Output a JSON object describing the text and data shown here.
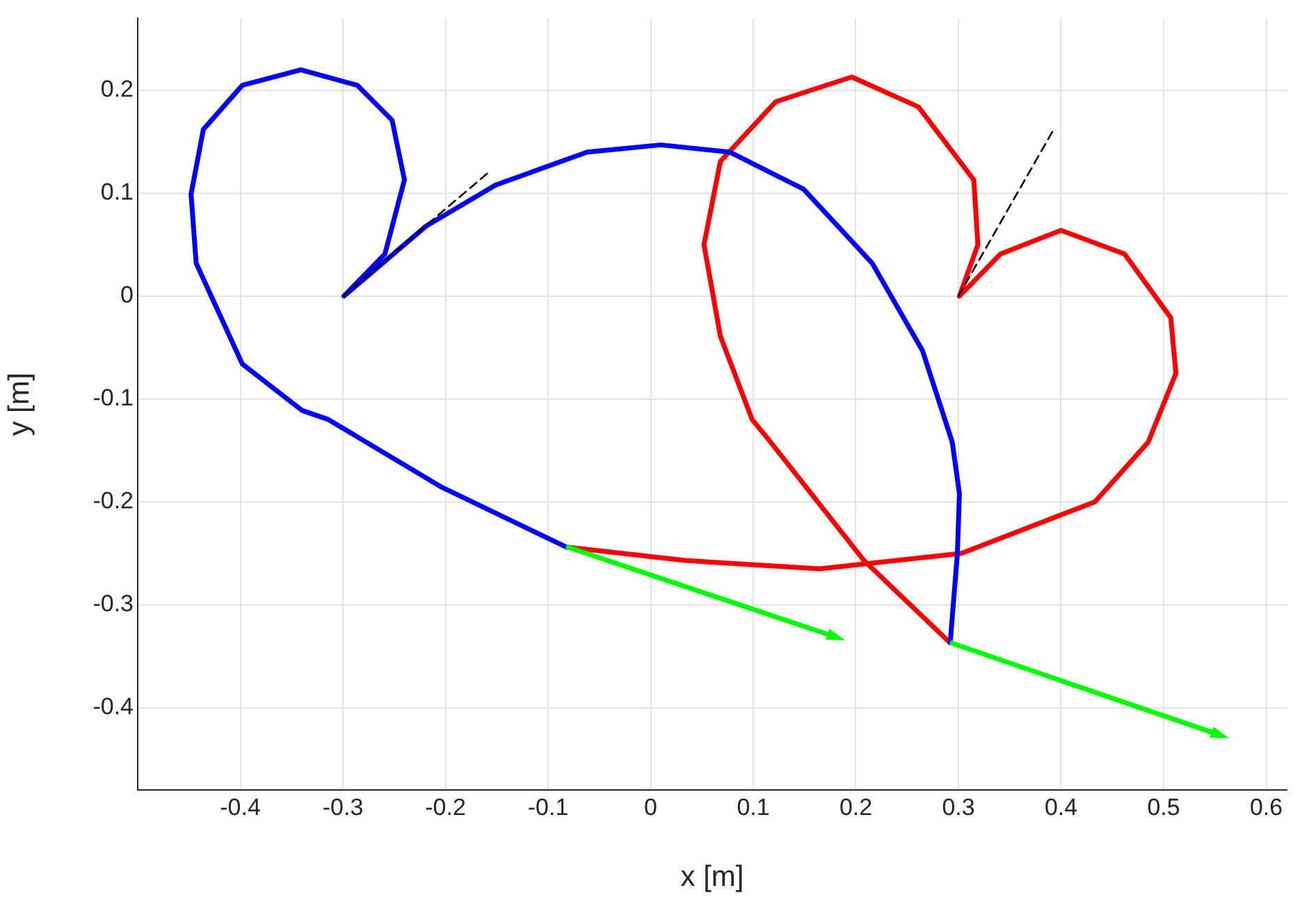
{
  "chart_data": {
    "type": "line",
    "xlabel": "x [m]",
    "ylabel": "y [m]",
    "xlim": [
      -0.5,
      0.62
    ],
    "ylim": [
      -0.48,
      0.27
    ],
    "xticks": [
      -0.4,
      -0.3,
      -0.2,
      -0.1,
      0,
      0.1,
      0.2,
      0.3,
      0.4,
      0.5,
      0.6
    ],
    "yticks": [
      -0.4,
      -0.3,
      -0.2,
      -0.1,
      0,
      0.1,
      0.2
    ],
    "grid": true,
    "legend": false,
    "marker": "none",
    "series": [
      {
        "color": "#0000ff",
        "line_style": "solid",
        "x": [
          -0.082,
          -0.205,
          -0.314,
          -0.34,
          -0.398,
          -0.443,
          -0.448,
          -0.436,
          -0.398,
          -0.341,
          -0.286,
          -0.252,
          -0.24,
          -0.259,
          -0.299,
          -0.219,
          -0.151,
          -0.062,
          0.01,
          0.077,
          0.149,
          0.216,
          0.265,
          0.294,
          0.301,
          0.299,
          0.292
        ],
        "values": [
          -0.244,
          -0.185,
          -0.12,
          -0.111,
          -0.066,
          0.032,
          0.099,
          0.162,
          0.205,
          0.22,
          0.205,
          0.171,
          0.113,
          0.041,
          0,
          0.068,
          0.108,
          0.14,
          0.147,
          0.14,
          0.104,
          0.032,
          -0.053,
          -0.142,
          -0.192,
          -0.25,
          -0.337
        ]
      },
      {
        "color": "#ff0000",
        "line_style": "solid",
        "x": [
          0.292,
          0.208,
          0.117,
          0.099,
          0.068,
          0.052,
          0.068,
          0.122,
          0.196,
          0.261,
          0.315,
          0.319,
          0.301,
          0.341,
          0.4,
          0.462,
          0.507,
          0.512,
          0.485,
          0.433,
          0.303,
          0.165,
          0.034,
          -0.082
        ],
        "values": [
          -0.337,
          -0.257,
          -0.142,
          -0.12,
          -0.039,
          0.05,
          0.131,
          0.189,
          0.213,
          0.184,
          0.113,
          0.05,
          0,
          0.041,
          0.064,
          0.041,
          -0.021,
          -0.075,
          -0.142,
          -0.2,
          -0.25,
          -0.265,
          -0.257,
          -0.244
        ]
      },
      {
        "color": "#000000",
        "line_style": "dashed",
        "x": [
          -0.3,
          -0.156
        ],
        "values": [
          0,
          0.122
        ]
      },
      {
        "color": "#000000",
        "line_style": "dashed",
        "x": [
          0.3,
          0.394
        ],
        "values": [
          0,
          0.164
        ]
      }
    ]
  }
}
